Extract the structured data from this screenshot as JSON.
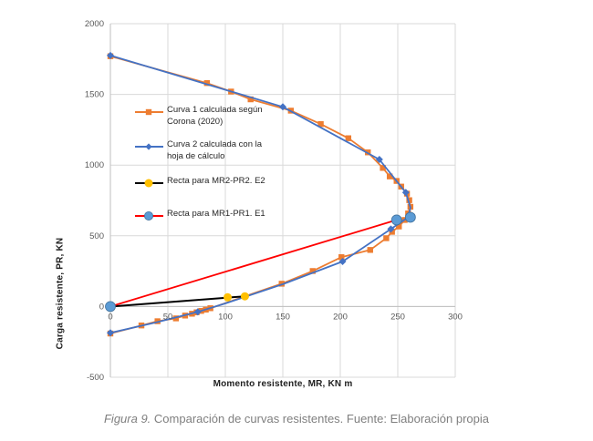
{
  "colors": {
    "curva1": "#ED7D31",
    "curva2": "#4472C4",
    "recta_e2_line": "#000000",
    "recta_e2_marker": "#FFC000",
    "recta_e1_line": "#FF0000",
    "recta_e1_marker": "#5B9BD5",
    "recta_e1_marker_edge": "#41719C",
    "gridline": "#D9D9D9",
    "axis_line": "#BFBFBF",
    "tick_text": "#595959",
    "axis_title_text": "#1f1f1f",
    "legend_text": "#262626",
    "caption_text": "#7F7F7F"
  },
  "chart_data": {
    "type": "line",
    "title": "",
    "xlabel": "Momento resistente, MR, KN m",
    "ylabel": "Carga  resistente, PR, KN",
    "xlim": [
      0,
      300
    ],
    "ylim": [
      -500,
      2000
    ],
    "x_ticks": [
      0,
      50,
      100,
      150,
      200,
      250,
      300
    ],
    "y_ticks": [
      2000,
      1500,
      1000,
      500,
      0,
      -500
    ],
    "grid": true,
    "legend_position": "inside-upper-left",
    "series": [
      {
        "name": "Curva 1 calculada según Corona (2020)",
        "legend_lines": [
          "Curva 1 calculada según",
          "Corona (2020)"
        ],
        "color": "#ED7D31",
        "marker": "square",
        "line_width": 1.8,
        "line": [
          [
            0,
            1770
          ],
          [
            84,
            1580
          ],
          [
            105,
            1520
          ],
          [
            122,
            1465
          ],
          [
            157,
            1385
          ],
          [
            183,
            1290
          ],
          [
            207,
            1190
          ],
          [
            224,
            1090
          ],
          [
            237,
            980
          ],
          [
            243,
            920
          ],
          [
            249,
            888
          ],
          [
            253,
            848
          ],
          [
            258,
            798
          ],
          [
            260,
            752
          ],
          [
            261,
            705
          ],
          [
            259,
            658
          ],
          [
            256,
            612
          ],
          [
            251,
            566
          ],
          [
            245,
            528
          ],
          [
            240,
            483
          ],
          [
            226,
            400
          ],
          [
            201,
            349
          ],
          [
            176,
            251
          ],
          [
            149,
            161
          ],
          [
            87,
            -12
          ],
          [
            83,
            -22
          ],
          [
            79,
            -31
          ],
          [
            75,
            -41
          ],
          [
            71,
            -51
          ],
          [
            65,
            -64
          ],
          [
            57,
            -84
          ],
          [
            41,
            -104
          ],
          [
            27,
            -134
          ],
          [
            0,
            -191
          ]
        ],
        "markers": [
          [
            0,
            1770
          ],
          [
            84,
            1580
          ],
          [
            105,
            1520
          ],
          [
            122,
            1465
          ],
          [
            157,
            1385
          ],
          [
            183,
            1290
          ],
          [
            207,
            1190
          ],
          [
            224,
            1090
          ],
          [
            237,
            980
          ],
          [
            243,
            920
          ],
          [
            249,
            888
          ],
          [
            253,
            848
          ],
          [
            258,
            798
          ],
          [
            260,
            752
          ],
          [
            261,
            705
          ],
          [
            259,
            658
          ],
          [
            256,
            612
          ],
          [
            251,
            566
          ],
          [
            245,
            528
          ],
          [
            240,
            483
          ],
          [
            226,
            400
          ],
          [
            201,
            349
          ],
          [
            176,
            251
          ],
          [
            149,
            161
          ],
          [
            87,
            -12
          ],
          [
            83,
            -22
          ],
          [
            79,
            -31
          ],
          [
            75,
            -41
          ],
          [
            71,
            -51
          ],
          [
            65,
            -64
          ],
          [
            57,
            -84
          ],
          [
            41,
            -104
          ],
          [
            27,
            -134
          ],
          [
            0,
            -191
          ]
        ]
      },
      {
        "name": "Curva 2 calculada con la hoja de cálculo",
        "legend_lines": [
          "Curva 2 calculada con la",
          "hoja de cálculo"
        ],
        "color": "#4472C4",
        "marker": "diamond",
        "line_width": 1.8,
        "line": [
          [
            0,
            1775
          ],
          [
            150,
            1412
          ],
          [
            234,
            1040
          ],
          [
            257,
            806
          ],
          [
            261,
            700
          ],
          [
            259,
            631
          ],
          [
            244,
            548
          ],
          [
            202,
            318
          ],
          [
            150,
            158
          ],
          [
            100,
            22
          ],
          [
            76,
            -38
          ],
          [
            40,
            -112
          ],
          [
            0,
            -186
          ]
        ],
        "markers": [
          [
            0,
            1775
          ],
          [
            150,
            1412
          ],
          [
            234,
            1040
          ],
          [
            257,
            806
          ],
          [
            244,
            548
          ],
          [
            202,
            318
          ],
          [
            76,
            -38
          ],
          [
            0,
            -186
          ]
        ]
      },
      {
        "name": "Recta para MR2-PR2. E2",
        "legend_lines": [
          "Recta para MR2-PR2. E2"
        ],
        "color": "#000000",
        "marker": "circle",
        "marker_color": "#FFC000",
        "marker_size": 4.5,
        "line_width": 2,
        "line": [
          [
            0,
            0
          ],
          [
            117,
            72
          ]
        ],
        "markers": [
          [
            102,
            65
          ],
          [
            117,
            72
          ]
        ]
      },
      {
        "name": "Recta para MR1-PR1. E1",
        "legend_lines": [
          "Recta para MR1-PR1. E1"
        ],
        "color": "#FF0000",
        "marker": "circle",
        "marker_color": "#5B9BD5",
        "marker_edge": "#41719C",
        "marker_size": 5.5,
        "line_width": 1.8,
        "line": [
          [
            0,
            0
          ],
          [
            249,
            612
          ]
        ],
        "markers": [
          [
            0,
            0
          ],
          [
            249,
            612
          ],
          [
            261,
            631
          ]
        ]
      }
    ]
  },
  "caption": {
    "label": "Figura 9.",
    "text": " Comparación de curvas resistentes. Fuente: Elaboración propia"
  }
}
